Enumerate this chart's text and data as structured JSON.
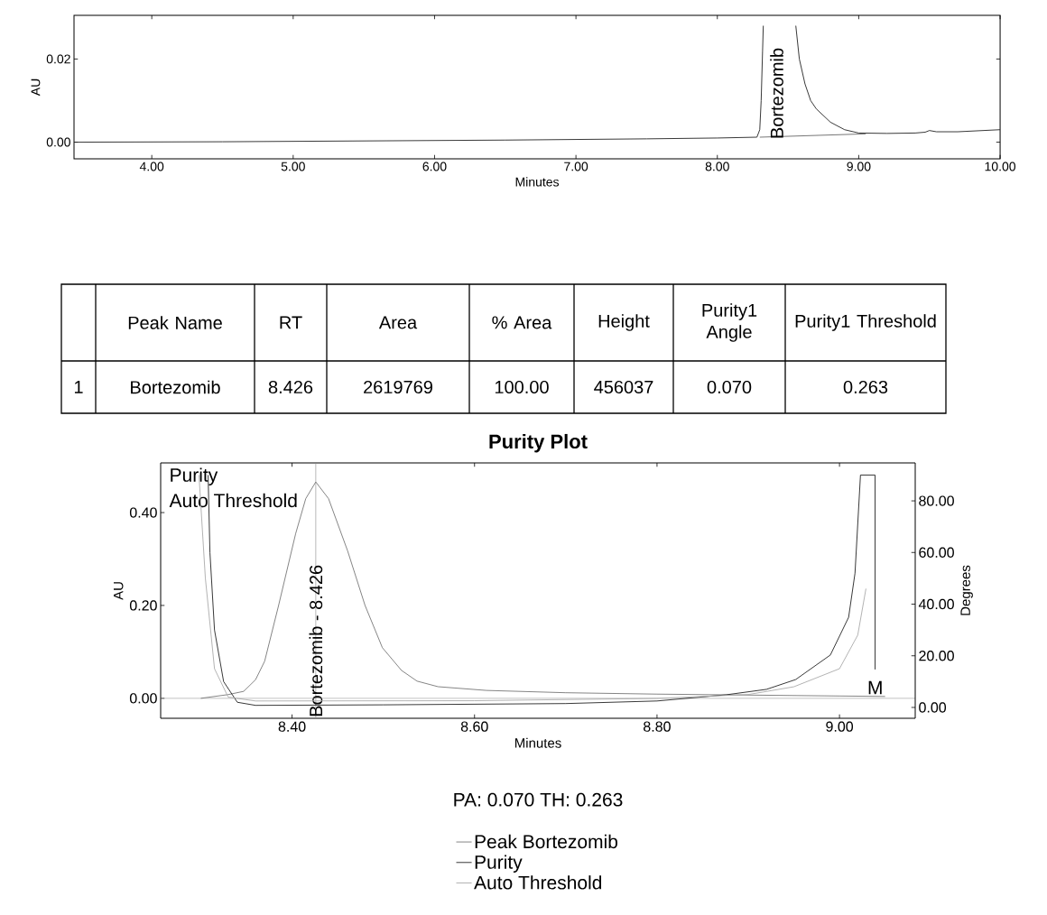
{
  "chart_data": [
    {
      "type": "line",
      "xlabel": "Minutes",
      "ylabel": "AU",
      "xlim": [
        3.45,
        10.0
      ],
      "ylim": [
        -0.004,
        0.0305
      ],
      "xticks": [
        {
          "value": 4,
          "label": "4.00"
        },
        {
          "value": 5,
          "label": "5.00"
        },
        {
          "value": 6,
          "label": "6.00"
        },
        {
          "value": 7,
          "label": "7.00"
        },
        {
          "value": 8,
          "label": "8.00"
        },
        {
          "value": 9,
          "label": "9.00"
        },
        {
          "value": 10,
          "label": "10.00"
        }
      ],
      "yticks": [
        {
          "value": 0,
          "label": "0.00"
        },
        {
          "value": 0.02,
          "label": "0.02"
        }
      ],
      "series": [
        {
          "color": "#222222",
          "x": [
            3.45,
            4.5,
            5.5,
            6.5,
            7.5,
            8.0,
            8.28,
            8.3,
            8.31,
            8.32,
            8.325,
            8.33,
            8.44,
            8.55,
            8.555,
            8.58,
            8.62,
            8.66,
            8.7,
            8.8,
            8.9,
            9.0,
            9.2,
            9.4,
            9.47,
            9.5,
            9.55,
            9.7,
            10.0
          ],
          "values": [
            0.0,
            0.0001,
            0.0003,
            0.0005,
            0.0008,
            0.001,
            0.0012,
            0.003,
            0.01,
            0.022,
            0.028,
            null,
            null,
            null,
            0.028,
            0.02,
            0.014,
            0.01,
            0.008,
            0.0048,
            0.003,
            0.0022,
            0.0021,
            0.0022,
            0.0024,
            0.0028,
            0.0025,
            0.0025,
            0.003
          ]
        },
        {
          "color": "#666666",
          "x": [
            8.3,
            9.05
          ],
          "values": [
            0.0012,
            0.002
          ]
        }
      ],
      "annotations": [
        {
          "text": "Bortezomib",
          "x": 8.42,
          "y": 0.0005
        }
      ]
    },
    {
      "type": "other",
      "categories": [
        null,
        "Peak Name",
        "RT",
        "Area",
        "% Area",
        "Height",
        "Purity1 Angle",
        "Purity1 Threshold"
      ],
      "value_labels": [
        "1",
        "Bortezomib",
        "8.426",
        "2619769",
        "100.00",
        "456037",
        "0.070",
        "0.263"
      ]
    },
    {
      "type": "line",
      "title": "Purity Plot",
      "xlabel": "Minutes",
      "ylabel": "AU",
      "y2label": "Degrees",
      "xlim": [
        8.256,
        9.083
      ],
      "ylim": [
        -0.043,
        0.507
      ],
      "y2lim": [
        -4.2,
        94.7
      ],
      "xticks": [
        {
          "value": 8.4,
          "label": "8.40"
        },
        {
          "value": 8.6,
          "label": "8.60"
        },
        {
          "value": 8.8,
          "label": "8.80"
        },
        {
          "value": 9.0,
          "label": "9.00"
        }
      ],
      "yticks": [
        {
          "value": 0,
          "label": "0.00"
        },
        {
          "value": 0.2,
          "label": "0.20"
        },
        {
          "value": 0.4,
          "label": "0.40"
        }
      ],
      "y2ticks": [
        {
          "value": 0,
          "label": "0.00"
        },
        {
          "value": 20,
          "label": "20.00"
        },
        {
          "value": 40,
          "label": "40.00"
        },
        {
          "value": 60,
          "label": "60.00"
        },
        {
          "value": 80,
          "label": "80.00"
        }
      ],
      "legend": "bottom",
      "series": [
        {
          "name": "Peak Bortezomib",
          "color": "#777777",
          "x": [
            8.3,
            8.33,
            8.347,
            8.36,
            8.37,
            8.385,
            8.404,
            8.415,
            8.426,
            8.44,
            8.461,
            8.48,
            8.499,
            8.52,
            8.537,
            8.56,
            8.613,
            8.7,
            8.8,
            8.9,
            9.0,
            9.05
          ],
          "values": [
            0.0,
            0.008,
            0.015,
            0.04,
            0.08,
            0.198,
            0.355,
            0.43,
            0.466,
            0.43,
            0.317,
            0.2,
            0.109,
            0.06,
            0.037,
            0.025,
            0.017,
            0.012,
            0.009,
            0.007,
            0.005,
            0.004
          ]
        },
        {
          "name": "Purity",
          "color": "#222222",
          "axis": "y2",
          "x": [
            8.308,
            8.31,
            8.315,
            8.325,
            8.34,
            8.36,
            8.5,
            8.7,
            8.8,
            8.876,
            8.92,
            8.952,
            8.99,
            9.01,
            9.017,
            9.023,
            9.039,
            9.039
          ],
          "values": [
            90,
            60,
            30,
            10,
            2,
            0.8,
            1.0,
            1.5,
            2.5,
            4.9,
            7,
            10.8,
            20.3,
            34.9,
            52,
            90,
            90,
            14.7
          ]
        },
        {
          "name": "Auto Threshold",
          "color": "#aaaaaa",
          "axis": "y2",
          "x": [
            8.298,
            8.305,
            8.315,
            8.33,
            8.36,
            8.6,
            8.8,
            8.9,
            8.95,
            9.0,
            9.02,
            9.029
          ],
          "values": [
            90,
            50,
            15,
            4,
            2.5,
            2.6,
            3.5,
            5,
            8,
            15,
            28,
            46
          ]
        }
      ],
      "ref_lines": [
        {
          "axis": "x",
          "value": 8.426,
          "label": "Bortezomib - 8.426",
          "color": "#888888"
        },
        {
          "axis": "y",
          "value": 0,
          "color": "#999999"
        }
      ],
      "annotations": [
        "Purity",
        "Auto Threshold",
        "M",
        "PA:  0.070  TH:  0.263"
      ]
    }
  ]
}
